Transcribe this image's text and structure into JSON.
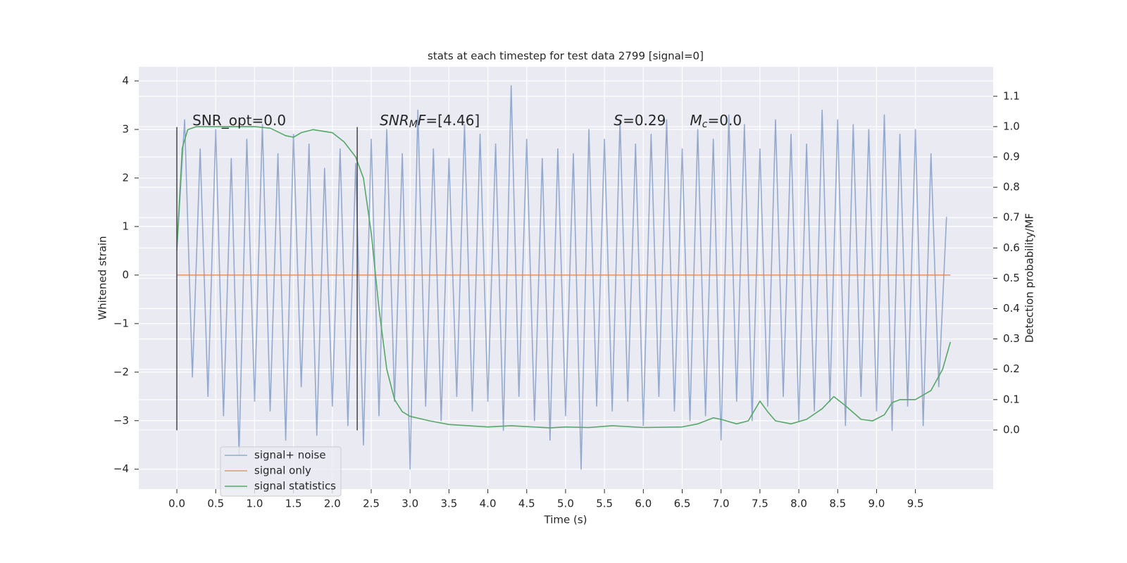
{
  "chart_data": {
    "type": "line",
    "title": "stats at each timestep for test data 2799 [signal=0]",
    "xlabel": "Time (s)",
    "ylabel": "Whitened strain",
    "y2label": "Detection probability/MF",
    "xlim": [
      -0.49,
      10.5
    ],
    "ylim": [
      -4.41,
      4.29
    ],
    "y2lim": [
      -0.195,
      1.197
    ],
    "xticks": [
      {
        "value": 0,
        "label": "0.0"
      },
      0.5,
      {
        "value": 1,
        "label": "1.0"
      },
      1.5,
      {
        "value": 2,
        "label": "2.0"
      },
      2.5,
      {
        "value": 3,
        "label": "3.0"
      },
      3.5,
      {
        "value": 4,
        "label": "4.0"
      },
      4.5,
      {
        "value": 5,
        "label": "5.0"
      },
      5.5,
      {
        "value": 6,
        "label": "6.0"
      },
      6.5,
      {
        "value": 7,
        "label": "7.0"
      },
      7.5,
      {
        "value": 8,
        "label": "8.0"
      },
      8.5,
      {
        "value": 9,
        "label": "9.0"
      },
      9.5
    ],
    "yticks": [
      {
        "value": -4,
        "label": "−4"
      },
      {
        "value": -3,
        "label": "−3"
      },
      {
        "value": -2,
        "label": "−2"
      },
      {
        "value": -1,
        "label": "−1"
      },
      0,
      1,
      2,
      3,
      4
    ],
    "y2ticks": [
      {
        "value": 0,
        "label": "0.0"
      },
      0.1,
      0.2,
      0.3,
      0.4,
      0.5,
      0.6,
      0.7,
      0.8,
      0.9,
      {
        "value": 1,
        "label": "1.0"
      },
      1.1
    ],
    "grid": true,
    "legend": "lower left",
    "series": [
      {
        "name": "signal+ noise",
        "color": "#4c72b0",
        "opacity": 0.55,
        "x": [
          0,
          0.1,
          0.2,
          0.3,
          0.4,
          0.5,
          0.6,
          0.7,
          0.8,
          0.9,
          1,
          1.1,
          1.2,
          1.3,
          1.4,
          1.5,
          1.6,
          1.7,
          1.8,
          1.9,
          2,
          2.1,
          2.2,
          2.3,
          2.4,
          2.5,
          2.6,
          2.7,
          2.8,
          2.9,
          3,
          3.1,
          3.2,
          3.3,
          3.4,
          3.5,
          3.6,
          3.7,
          3.8,
          3.9,
          4,
          4.1,
          4.2,
          4.3,
          4.4,
          4.5,
          4.6,
          4.7,
          4.8,
          4.9,
          5,
          5.1,
          5.2,
          5.3,
          5.4,
          5.5,
          5.6,
          5.7,
          5.8,
          5.9,
          6,
          6.1,
          6.2,
          6.3,
          6.4,
          6.5,
          6.6,
          6.7,
          6.8,
          6.9,
          7,
          7.1,
          7.2,
          7.3,
          7.4,
          7.5,
          7.6,
          7.7,
          7.8,
          7.9,
          8,
          8.1,
          8.2,
          8.3,
          8.4,
          8.5,
          8.6,
          8.7,
          8.8,
          8.9,
          9,
          9.1,
          9.2,
          9.3,
          9.4,
          9.5,
          9.6,
          9.7,
          9.8,
          9.9
        ],
        "values": [
          0.5,
          3.2,
          -2.1,
          2.6,
          -2.5,
          3.0,
          -2.9,
          2.4,
          -3.7,
          2.8,
          -2.6,
          3.1,
          -2.8,
          2.5,
          -3.4,
          2.9,
          -2.3,
          2.7,
          -3.3,
          2.2,
          -2.7,
          2.6,
          -3.1,
          2.3,
          -3.5,
          2.8,
          -2.9,
          3.0,
          -2.6,
          2.5,
          -4.0,
          3.4,
          -2.7,
          2.6,
          -3.0,
          2.4,
          -2.5,
          3.1,
          -2.8,
          2.9,
          -2.6,
          2.7,
          -3.2,
          3.9,
          -2.5,
          2.8,
          -3.0,
          2.4,
          -3.4,
          2.6,
          -2.9,
          2.5,
          -4.0,
          3.0,
          -2.7,
          2.8,
          -2.8,
          3.2,
          -2.6,
          2.7,
          -3.1,
          2.9,
          -2.5,
          3.2,
          -2.8,
          2.6,
          -3.0,
          3.0,
          -2.9,
          2.8,
          -3.4,
          3.3,
          -2.6,
          3.1,
          -3.0,
          2.6,
          -2.7,
          3.2,
          -2.5,
          2.9,
          -3.0,
          2.7,
          -2.8,
          3.4,
          -2.6,
          3.2,
          -3.1,
          3.1,
          -2.5,
          3.0,
          -2.8,
          3.3,
          -3.2,
          2.9,
          -2.7,
          3.0,
          -3.1,
          2.5,
          -2.3,
          1.2
        ]
      },
      {
        "name": "signal only",
        "color": "#dd8452",
        "opacity": 0.8,
        "x": [
          0,
          9.95
        ],
        "values": [
          0,
          0
        ]
      },
      {
        "name": "signal statistics",
        "color": "#55a868",
        "opacity": 1,
        "axis": "y2",
        "x": [
          0,
          0.07,
          0.14,
          0.25,
          0.5,
          1.0,
          1.2,
          1.4,
          1.5,
          1.6,
          1.75,
          2.0,
          2.15,
          2.3,
          2.4,
          2.5,
          2.6,
          2.7,
          2.8,
          2.9,
          3.0,
          3.25,
          3.5,
          4.0,
          4.3,
          4.5,
          4.8,
          5.0,
          5.3,
          5.6,
          6.0,
          6.5,
          6.7,
          6.9,
          7.0,
          7.2,
          7.35,
          7.5,
          7.6,
          7.7,
          7.9,
          8.1,
          8.3,
          8.45,
          8.6,
          8.8,
          8.95,
          9.1,
          9.2,
          9.3,
          9.5,
          9.7,
          9.85,
          9.95
        ],
        "values": [
          0.6,
          0.93,
          0.99,
          1.0,
          1.0,
          1.0,
          0.995,
          0.97,
          0.965,
          0.98,
          0.99,
          0.98,
          0.95,
          0.9,
          0.83,
          0.65,
          0.4,
          0.2,
          0.1,
          0.06,
          0.045,
          0.03,
          0.018,
          0.01,
          0.014,
          0.011,
          0.007,
          0.01,
          0.008,
          0.014,
          0.008,
          0.01,
          0.02,
          0.04,
          0.035,
          0.02,
          0.03,
          0.095,
          0.06,
          0.03,
          0.02,
          0.035,
          0.07,
          0.11,
          0.08,
          0.035,
          0.03,
          0.05,
          0.09,
          0.1,
          0.1,
          0.13,
          0.2,
          0.29
        ]
      }
    ],
    "vlines": [
      {
        "x": 0,
        "ymin": -3.2,
        "ymax": 3.05,
        "color": "#444444"
      },
      {
        "x": 2.32,
        "ymin": -3.2,
        "ymax": 3.05,
        "color": "#444444"
      }
    ],
    "annotations": [
      {
        "x": 0.2,
        "y": 3.17,
        "parts": [
          {
            "text": "SNR_opt=0.0"
          }
        ]
      },
      {
        "x": 2.61,
        "y": 3.17,
        "parts": [
          {
            "text": "SNR",
            "italic": true
          },
          {
            "text": "M",
            "italic": true,
            "sub": true
          },
          {
            "text": "F",
            "italic": true
          },
          {
            "text": "=[4.46]"
          }
        ]
      },
      {
        "x": 5.62,
        "y": 3.17,
        "parts": [
          {
            "text": "S",
            "italic": true
          },
          {
            "text": "=0.29"
          }
        ]
      },
      {
        "x": 6.6,
        "y": 3.17,
        "parts": [
          {
            "text": "M",
            "italic": true
          },
          {
            "text": "c",
            "italic": true,
            "sub": true
          },
          {
            "text": "=0.0"
          }
        ]
      }
    ]
  }
}
